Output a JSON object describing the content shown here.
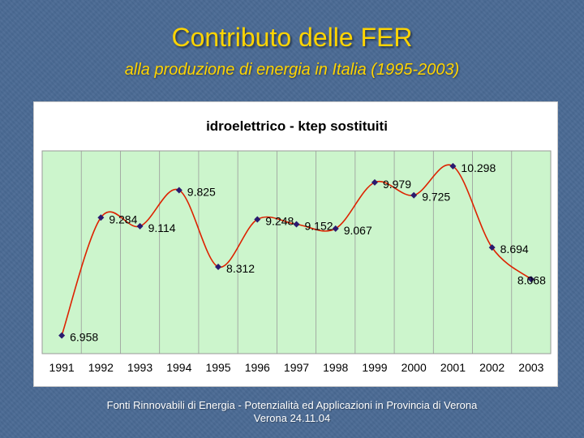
{
  "slide": {
    "title": "Contributo delle FER",
    "subtitle": "alla produzione di energia in Italia (1995-2003)",
    "footer_line1": "Fonti Rinnovabili di Energia - Potenzialità ed Applicazioni in Provincia di Verona",
    "footer_line2": "Verona 24.11.04"
  },
  "colors": {
    "plot_background": "#ccf5cc",
    "line": "#dd2200",
    "marker": "#2a1a6e"
  },
  "chart_data": {
    "type": "line",
    "title": "idroelettrico - ktep sostituiti",
    "categories": [
      "1991",
      "1992",
      "1993",
      "1994",
      "1995",
      "1996",
      "1997",
      "1998",
      "1999",
      "2000",
      "2001",
      "2002",
      "2003"
    ],
    "values": [
      6.958,
      9.284,
      9.114,
      9.825,
      8.312,
      9.248,
      9.152,
      9.067,
      9.979,
      9.725,
      10.298,
      8.694,
      8.068
    ],
    "labels": [
      "6.958",
      "9.284",
      "9.114",
      "9.825",
      "8.312",
      "9.248",
      "9.152",
      "9.067",
      "9.979",
      "9.725",
      "10.298",
      "8.694",
      "8.068"
    ],
    "ylim": [
      6.6,
      10.6
    ],
    "grid": "vertical",
    "legend": "none"
  }
}
